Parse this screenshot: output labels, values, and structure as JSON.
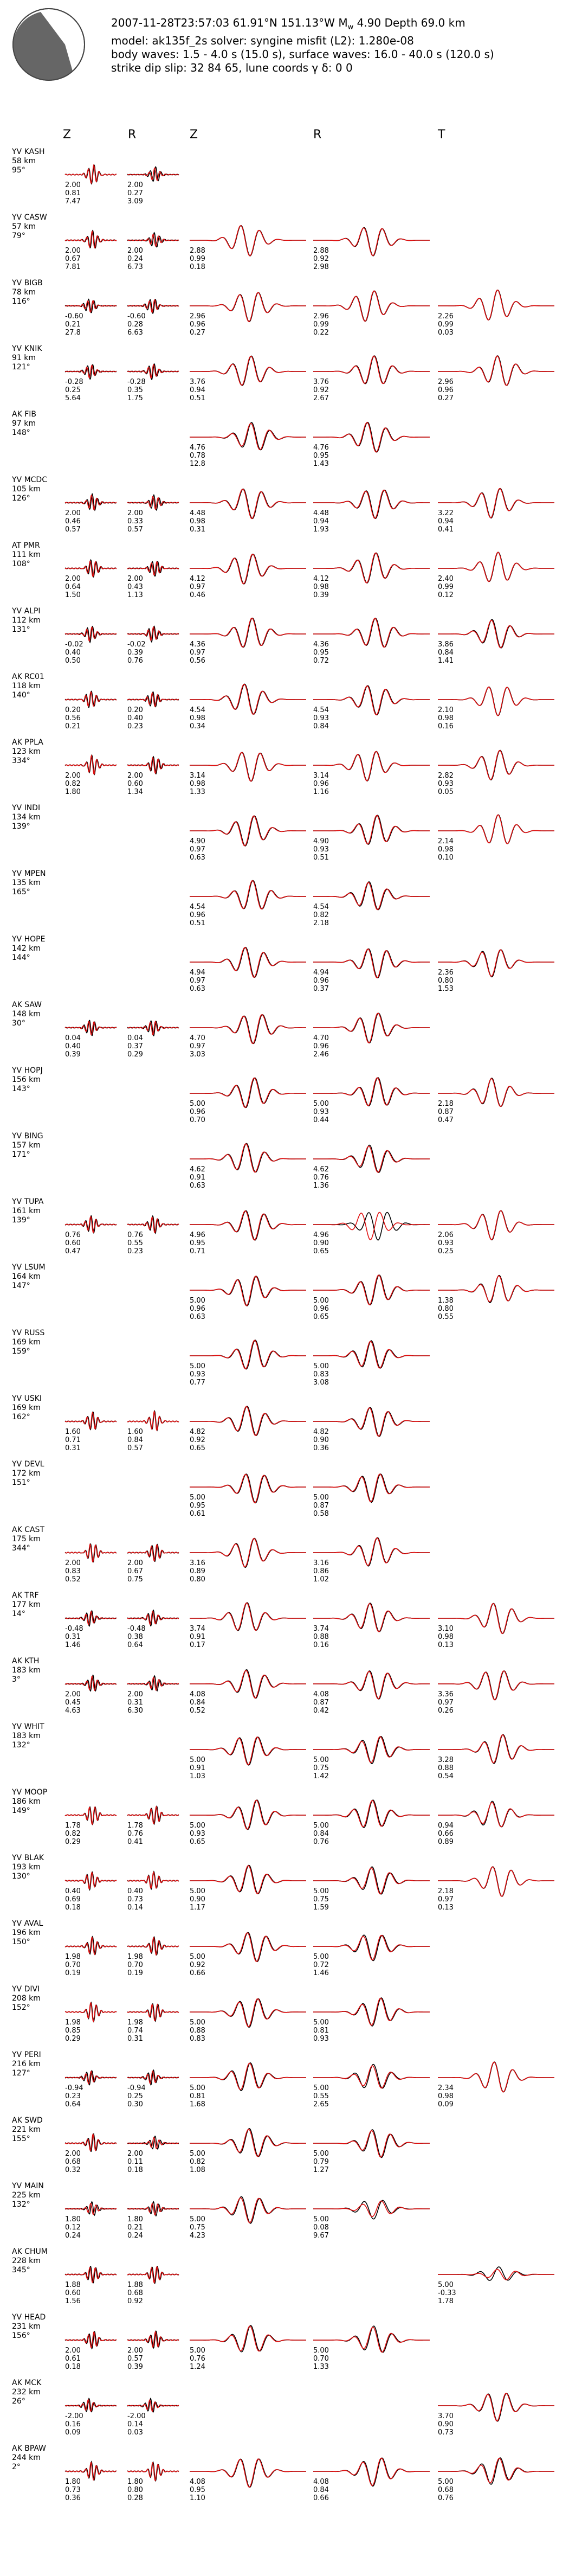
{
  "header": {
    "line1_pre": "2007-11-28T23:57:03  61.91°N 151.13°W  M",
    "line1_sub": "w",
    "line1_post": " 4.90   Depth 69.0 km",
    "line2": "model: ak135f_2s   solver: syngine   misfit (L2): 1.280e-08",
    "line3": "body waves:  1.5 - 4.0 s (15.0 s),  surface waves: 16.0 - 40.0 s (120.0 s)",
    "line4": "strike  dip  slip:  32  84  65,   lune coords γ  δ:  0  0"
  },
  "columns": {
    "bw_z": "Z",
    "bw_r": "R",
    "sw_z": "Z",
    "sw_r": "R",
    "sw_t": "T"
  },
  "colors": {
    "observed": "#000000",
    "synthetic": "#e01010",
    "beachball_fill": "#666666"
  },
  "beachball": {
    "strike": 32,
    "dip": 84,
    "slip": 65
  },
  "chart_data": {
    "type": "line",
    "title": "2007-11-28T23:57:03 61.91°N 151.13°W Mw 4.90 Depth 69.0 km",
    "series": [
      {
        "name": "observed"
      },
      {
        "name": "synthetic"
      }
    ],
    "stations": [
      {
        "name": "YV KASH",
        "dist": "58 km",
        "az": "95°",
        "bz": [
          "2.00",
          "0.81",
          "7.47"
        ],
        "br": [
          "2.00",
          "0.27",
          "3.09"
        ],
        "sz": null,
        "sr": null,
        "st": null
      },
      {
        "name": "YV CASW",
        "dist": "57 km",
        "az": "79°",
        "bz": [
          "2.00",
          "0.67",
          "7.81"
        ],
        "br": [
          "2.00",
          "0.24",
          "6.73"
        ],
        "sz": [
          "2.88",
          "0.99",
          "0.18"
        ],
        "sr": [
          "2.88",
          "0.92",
          "2.98"
        ],
        "st": null
      },
      {
        "name": "YV BIGB",
        "dist": "78 km",
        "az": "116°",
        "bz": [
          "-0.60",
          "0.21",
          "27.8"
        ],
        "br": [
          "-0.60",
          "0.28",
          "6.63"
        ],
        "sz": [
          "2.96",
          "0.96",
          "0.27"
        ],
        "sr": [
          "2.96",
          "0.99",
          "0.22"
        ],
        "st": [
          "2.26",
          "0.99",
          "0.03"
        ]
      },
      {
        "name": "YV KNIK",
        "dist": "91 km",
        "az": "121°",
        "bz": [
          "-0.28",
          "0.25",
          "5.64"
        ],
        "br": [
          "-0.28",
          "0.35",
          "1.75"
        ],
        "sz": [
          "3.76",
          "0.94",
          "0.51"
        ],
        "sr": [
          "3.76",
          "0.92",
          "2.67"
        ],
        "st": [
          "2.96",
          "0.96",
          "0.27"
        ]
      },
      {
        "name": "AK FIB",
        "dist": "97 km",
        "az": "148°",
        "bz": null,
        "br": null,
        "sz": [
          "4.76",
          "0.78",
          "12.8"
        ],
        "sr": [
          "4.76",
          "0.95",
          "1.43"
        ],
        "st": null
      },
      {
        "name": "YV MCDC",
        "dist": "105 km",
        "az": "126°",
        "bz": [
          "2.00",
          "0.46",
          "0.57"
        ],
        "br": [
          "2.00",
          "0.33",
          "0.57"
        ],
        "sz": [
          "4.48",
          "0.98",
          "0.31"
        ],
        "sr": [
          "4.48",
          "0.94",
          "1.93"
        ],
        "st": [
          "3.22",
          "0.94",
          "0.41"
        ]
      },
      {
        "name": "AT PMR",
        "dist": "111 km",
        "az": "108°",
        "bz": [
          "2.00",
          "0.64",
          "1.50"
        ],
        "br": [
          "2.00",
          "0.43",
          "1.13"
        ],
        "sz": [
          "4.12",
          "0.97",
          "0.46"
        ],
        "sr": [
          "4.12",
          "0.98",
          "0.39"
        ],
        "st": [
          "2.40",
          "0.99",
          "0.12"
        ]
      },
      {
        "name": "YV ALPI",
        "dist": "112 km",
        "az": "131°",
        "bz": [
          "-0.02",
          "0.40",
          "0.50"
        ],
        "br": [
          "-0.02",
          "0.39",
          "0.76"
        ],
        "sz": [
          "4.36",
          "0.97",
          "0.56"
        ],
        "sr": [
          "4.36",
          "0.95",
          "0.72"
        ],
        "st": [
          "3.86",
          "0.84",
          "1.41"
        ]
      },
      {
        "name": "AK RC01",
        "dist": "118 km",
        "az": "140°",
        "bz": [
          "0.20",
          "0.56",
          "0.21"
        ],
        "br": [
          "0.20",
          "0.40",
          "0.23"
        ],
        "sz": [
          "4.54",
          "0.98",
          "0.34"
        ],
        "sr": [
          "4.54",
          "0.93",
          "0.84"
        ],
        "st": [
          "2.10",
          "0.98",
          "0.16"
        ]
      },
      {
        "name": "AK PPLA",
        "dist": "123 km",
        "az": "334°",
        "bz": [
          "2.00",
          "0.82",
          "1.80"
        ],
        "br": [
          "2.00",
          "0.60",
          "1.34"
        ],
        "sz": [
          "3.14",
          "0.98",
          "1.33"
        ],
        "sr": [
          "3.14",
          "0.96",
          "1.16"
        ],
        "st": [
          "2.82",
          "0.93",
          "0.05"
        ]
      },
      {
        "name": "YV INDI",
        "dist": "134 km",
        "az": "139°",
        "bz": null,
        "br": null,
        "sz": [
          "4.90",
          "0.97",
          "0.63"
        ],
        "sr": [
          "4.90",
          "0.93",
          "0.51"
        ],
        "st": [
          "2.14",
          "0.98",
          "0.10"
        ]
      },
      {
        "name": "YV MPEN",
        "dist": "135 km",
        "az": "165°",
        "bz": null,
        "br": null,
        "sz": [
          "4.54",
          "0.96",
          "0.51"
        ],
        "sr": [
          "4.54",
          "0.82",
          "2.18"
        ],
        "st": null
      },
      {
        "name": "YV HOPE",
        "dist": "142 km",
        "az": "144°",
        "bz": null,
        "br": null,
        "sz": [
          "4.94",
          "0.97",
          "0.63"
        ],
        "sr": [
          "4.94",
          "0.96",
          "0.37"
        ],
        "st": [
          "2.36",
          "0.80",
          "1.53"
        ]
      },
      {
        "name": "AK SAW",
        "dist": "148 km",
        "az": "30°",
        "bz": [
          "0.04",
          "0.40",
          "0.39"
        ],
        "br": [
          "0.04",
          "0.37",
          "0.29"
        ],
        "sz": [
          "4.70",
          "0.97",
          "3.03"
        ],
        "sr": [
          "4.70",
          "0.96",
          "2.46"
        ],
        "st": null
      },
      {
        "name": "YV HOPJ",
        "dist": "156 km",
        "az": "143°",
        "bz": null,
        "br": null,
        "sz": [
          "5.00",
          "0.96",
          "0.70"
        ],
        "sr": [
          "5.00",
          "0.93",
          "0.44"
        ],
        "st": [
          "2.18",
          "0.87",
          "0.47"
        ]
      },
      {
        "name": "YV BING",
        "dist": "157 km",
        "az": "171°",
        "bz": null,
        "br": null,
        "sz": [
          "4.62",
          "0.91",
          "0.63"
        ],
        "sr": [
          "4.62",
          "0.76",
          "1.36"
        ],
        "st": null
      },
      {
        "name": "YV TUPA",
        "dist": "161 km",
        "az": "139°",
        "bz": [
          "0.76",
          "0.60",
          "0.47"
        ],
        "br": [
          "0.76",
          "0.55",
          "0.23"
        ],
        "sz": [
          "4.96",
          "0.95",
          "0.71"
        ],
        "sr": [
          "4.96",
          "0.90",
          "0.65"
        ],
        "st": [
          "2.06",
          "0.93",
          "0.25"
        ]
      },
      {
        "name": "YV LSUM",
        "dist": "164 km",
        "az": "147°",
        "bz": null,
        "br": null,
        "sz": [
          "5.00",
          "0.96",
          "0.63"
        ],
        "sr": [
          "5.00",
          "0.96",
          "0.65"
        ],
        "st": [
          "1.38",
          "0.80",
          "0.55"
        ]
      },
      {
        "name": "YV RUSS",
        "dist": "169 km",
        "az": "159°",
        "bz": null,
        "br": null,
        "sz": [
          "5.00",
          "0.93",
          "0.77"
        ],
        "sr": [
          "5.00",
          "0.83",
          "3.08"
        ],
        "st": null
      },
      {
        "name": "YV USKI",
        "dist": "169 km",
        "az": "162°",
        "bz": [
          "1.60",
          "0.71",
          "0.31"
        ],
        "br": [
          "1.60",
          "0.84",
          "0.57"
        ],
        "sz": [
          "4.82",
          "0.92",
          "0.65"
        ],
        "sr": [
          "4.82",
          "0.90",
          "0.36"
        ],
        "st": null
      },
      {
        "name": "YV DEVL",
        "dist": "172 km",
        "az": "151°",
        "bz": null,
        "br": null,
        "sz": [
          "5.00",
          "0.95",
          "0.61"
        ],
        "sr": [
          "5.00",
          "0.87",
          "0.58"
        ],
        "st": null
      },
      {
        "name": "AK CAST",
        "dist": "175 km",
        "az": "344°",
        "bz": [
          "2.00",
          "0.83",
          "0.52"
        ],
        "br": [
          "2.00",
          "0.67",
          "0.75"
        ],
        "sz": [
          "3.16",
          "0.89",
          "0.80"
        ],
        "sr": [
          "3.16",
          "0.86",
          "1.02"
        ],
        "st": null
      },
      {
        "name": "AK TRF",
        "dist": "177 km",
        "az": "14°",
        "bz": [
          "-0.48",
          "0.31",
          "1.46"
        ],
        "br": [
          "-0.48",
          "0.38",
          "0.64"
        ],
        "sz": [
          "3.74",
          "0.91",
          "0.17"
        ],
        "sr": [
          "3.74",
          "0.88",
          "0.16"
        ],
        "st": [
          "3.10",
          "0.98",
          "0.13"
        ]
      },
      {
        "name": "AK KTH",
        "dist": "183 km",
        "az": "3°",
        "bz": [
          "2.00",
          "0.45",
          "4.63"
        ],
        "br": [
          "2.00",
          "0.31",
          "6.30"
        ],
        "sz": [
          "4.08",
          "0.84",
          "0.52"
        ],
        "sr": [
          "4.08",
          "0.87",
          "0.42"
        ],
        "st": [
          "3.36",
          "0.97",
          "0.26"
        ]
      },
      {
        "name": "YV WHIT",
        "dist": "183 km",
        "az": "132°",
        "bz": null,
        "br": null,
        "sz": [
          "5.00",
          "0.91",
          "1.03"
        ],
        "sr": [
          "5.00",
          "0.75",
          "1.42"
        ],
        "st": [
          "3.28",
          "0.88",
          "0.54"
        ]
      },
      {
        "name": "YV MOOP",
        "dist": "186 km",
        "az": "149°",
        "bz": [
          "1.78",
          "0.82",
          "0.29"
        ],
        "br": [
          "1.78",
          "0.76",
          "0.41"
        ],
        "sz": [
          "5.00",
          "0.93",
          "0.65"
        ],
        "sr": [
          "5.00",
          "0.84",
          "0.76"
        ],
        "st": [
          "0.94",
          "0.66",
          "0.89"
        ]
      },
      {
        "name": "YV BLAK",
        "dist": "193 km",
        "az": "130°",
        "bz": [
          "0.40",
          "0.69",
          "0.18"
        ],
        "br": [
          "0.40",
          "0.73",
          "0.14"
        ],
        "sz": [
          "5.00",
          "0.90",
          "1.17"
        ],
        "sr": [
          "5.00",
          "0.75",
          "1.59"
        ],
        "st": [
          "2.18",
          "0.97",
          "0.13"
        ]
      },
      {
        "name": "YV AVAL",
        "dist": "196 km",
        "az": "150°",
        "bz": [
          "1.98",
          "0.70",
          "0.19"
        ],
        "br": [
          "1.98",
          "0.70",
          "0.19"
        ],
        "sz": [
          "5.00",
          "0.92",
          "0.66"
        ],
        "sr": [
          "5.00",
          "0.72",
          "1.46"
        ],
        "st": null
      },
      {
        "name": "YV DIVI",
        "dist": "208 km",
        "az": "152°",
        "bz": [
          "1.98",
          "0.85",
          "0.29"
        ],
        "br": [
          "1.98",
          "0.74",
          "0.31"
        ],
        "sz": [
          "5.00",
          "0.88",
          "0.83"
        ],
        "sr": [
          "5.00",
          "0.81",
          "0.93"
        ],
        "st": null
      },
      {
        "name": "YV PERI",
        "dist": "216 km",
        "az": "127°",
        "bz": [
          "-0.94",
          "0.23",
          "0.64"
        ],
        "br": [
          "-0.94",
          "0.25",
          "0.30"
        ],
        "sz": [
          "5.00",
          "0.81",
          "1.68"
        ],
        "sr": [
          "5.00",
          "0.55",
          "2.65"
        ],
        "st": [
          "2.34",
          "0.98",
          "0.09"
        ]
      },
      {
        "name": "AK SWD",
        "dist": "221 km",
        "az": "155°",
        "bz": [
          "2.00",
          "0.68",
          "0.32"
        ],
        "br": [
          "2.00",
          "0.11",
          "0.18"
        ],
        "sz": [
          "5.00",
          "0.82",
          "1.08"
        ],
        "sr": [
          "5.00",
          "0.79",
          "1.27"
        ],
        "st": null
      },
      {
        "name": "YV MAIN",
        "dist": "225 km",
        "az": "132°",
        "bz": [
          "1.80",
          "0.12",
          "0.24"
        ],
        "br": [
          "1.80",
          "0.21",
          "0.24"
        ],
        "sz": [
          "5.00",
          "0.75",
          "4.23"
        ],
        "sr": [
          "5.00",
          "0.08",
          "9.67"
        ],
        "st": null
      },
      {
        "name": "AK CHUM",
        "dist": "228 km",
        "az": "345°",
        "bz": [
          "1.88",
          "0.60",
          "1.56"
        ],
        "br": [
          "1.88",
          "0.68",
          "0.92"
        ],
        "sz": null,
        "sr": null,
        "st": [
          "5.00",
          "-0.33",
          "1.78"
        ]
      },
      {
        "name": "YV HEAD",
        "dist": "231 km",
        "az": "156°",
        "bz": [
          "2.00",
          "0.61",
          "0.18"
        ],
        "br": [
          "2.00",
          "0.57",
          "0.39"
        ],
        "sz": [
          "5.00",
          "0.76",
          "1.24"
        ],
        "sr": [
          "5.00",
          "0.70",
          "1.33"
        ],
        "st": null
      },
      {
        "name": "AK MCK",
        "dist": "232 km",
        "az": "26°",
        "bz": [
          "-2.00",
          "0.16",
          "0.09"
        ],
        "br": [
          "-2.00",
          "0.14",
          "0.03"
        ],
        "sz": null,
        "sr": null,
        "st": [
          "3.70",
          "0.90",
          "0.73"
        ]
      },
      {
        "name": "AK BPAW",
        "dist": "244 km",
        "az": "2°",
        "bz": [
          "1.80",
          "0.73",
          "0.36"
        ],
        "br": [
          "1.80",
          "0.80",
          "0.28"
        ],
        "sz": [
          "4.08",
          "0.95",
          "1.10"
        ],
        "sr": [
          "4.08",
          "0.84",
          "0.66"
        ],
        "st": [
          "5.00",
          "0.68",
          "0.76"
        ]
      }
    ]
  }
}
